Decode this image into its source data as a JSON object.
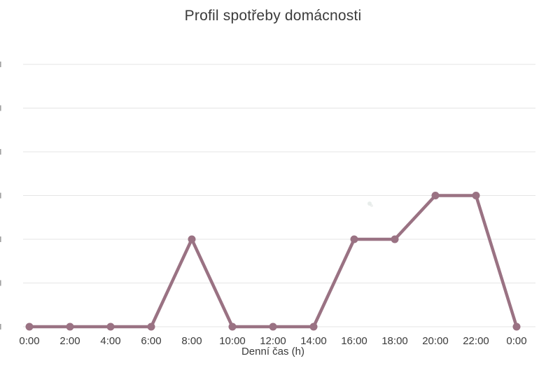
{
  "chart_data": {
    "type": "line",
    "title": "Profil spotřeby domácnosti",
    "xlabel": "Denní čas (h)",
    "ylabel": "",
    "categories": [
      "0:00",
      "2:00",
      "4:00",
      "6:00",
      "8:00",
      "10:00",
      "12:00",
      "14:00",
      "16:00",
      "18:00",
      "20:00",
      "22:00",
      "0:00"
    ],
    "values": [
      0,
      0,
      0,
      0,
      2,
      0,
      0,
      0,
      2,
      2,
      3,
      3,
      0
    ],
    "ylim": [
      0,
      6
    ],
    "y_gridline_step": 1,
    "grid": true,
    "legend": "none",
    "y_tick_labels_visible": false,
    "notes": "Y-axis tick labels are cropped off at the left edge of the screenshot; values expressed in gridline units (one gridline = 1 unit).",
    "line_color": "#9a7283",
    "marker_color": "#9a7283",
    "gridline_color": "#e5e5e5",
    "text_color": "#3b3b3b",
    "background_color": "#ffffff"
  }
}
